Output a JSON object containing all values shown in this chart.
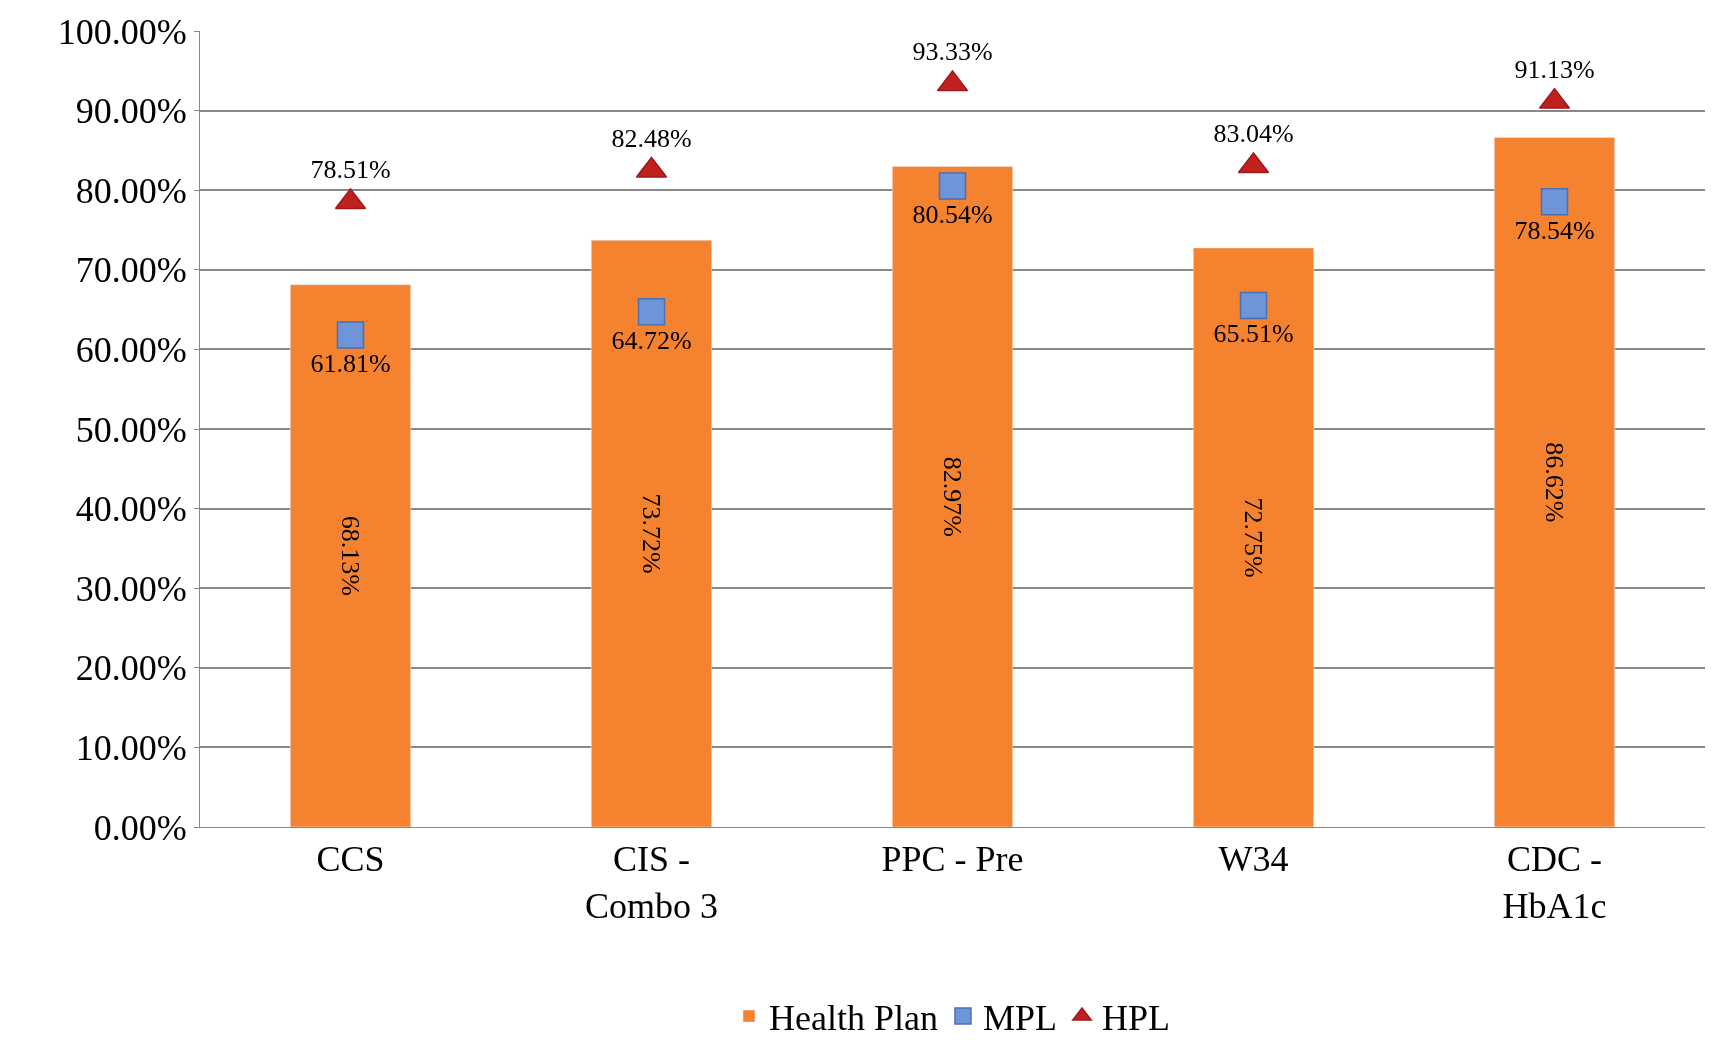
{
  "chart_data": {
    "type": "bar",
    "categories": [
      "CCS",
      "CIS - Combo 3",
      "PPC - Pre",
      "W34",
      "CDC - HbA1c"
    ],
    "series": [
      {
        "name": "Health Plan",
        "color": "#f5822f",
        "values": [
          68.13,
          73.72,
          82.97,
          72.75,
          86.62
        ],
        "value_labels": [
          "68.13%",
          "73.72%",
          "82.97%",
          "72.75%",
          "86.62%"
        ]
      },
      {
        "name": "MPL",
        "type": "scatter",
        "marker": "square",
        "color": "#6f95d9",
        "values": [
          61.81,
          64.72,
          80.54,
          65.51,
          78.54
        ],
        "value_labels": [
          "61.81%",
          "64.72%",
          "80.54%",
          "65.51%",
          "78.54%"
        ]
      },
      {
        "name": "HPL",
        "type": "scatter",
        "marker": "triangle",
        "color": "#c0201e",
        "values": [
          78.51,
          82.48,
          93.33,
          83.04,
          91.13
        ],
        "value_labels": [
          "78.51%",
          "82.48%",
          "93.33%",
          "83.04%",
          "91.13%"
        ]
      }
    ],
    "ylim": [
      0,
      100
    ],
    "yticks": [
      {
        "value": 0,
        "label": "0.00%"
      },
      {
        "value": 10,
        "label": "10.00%"
      },
      {
        "value": 20,
        "label": "20.00%"
      },
      {
        "value": 30,
        "label": "30.00%"
      },
      {
        "value": 40,
        "label": "40.00%"
      },
      {
        "value": 50,
        "label": "50.00%"
      },
      {
        "value": 60,
        "label": "60.00%"
      },
      {
        "value": 70,
        "label": "70.00%"
      },
      {
        "value": 80,
        "label": "80.00%"
      },
      {
        "value": 90,
        "label": "90.00%"
      },
      {
        "value": 100,
        "label": "100.00%"
      }
    ],
    "grid": "y",
    "legend": "bottom"
  }
}
